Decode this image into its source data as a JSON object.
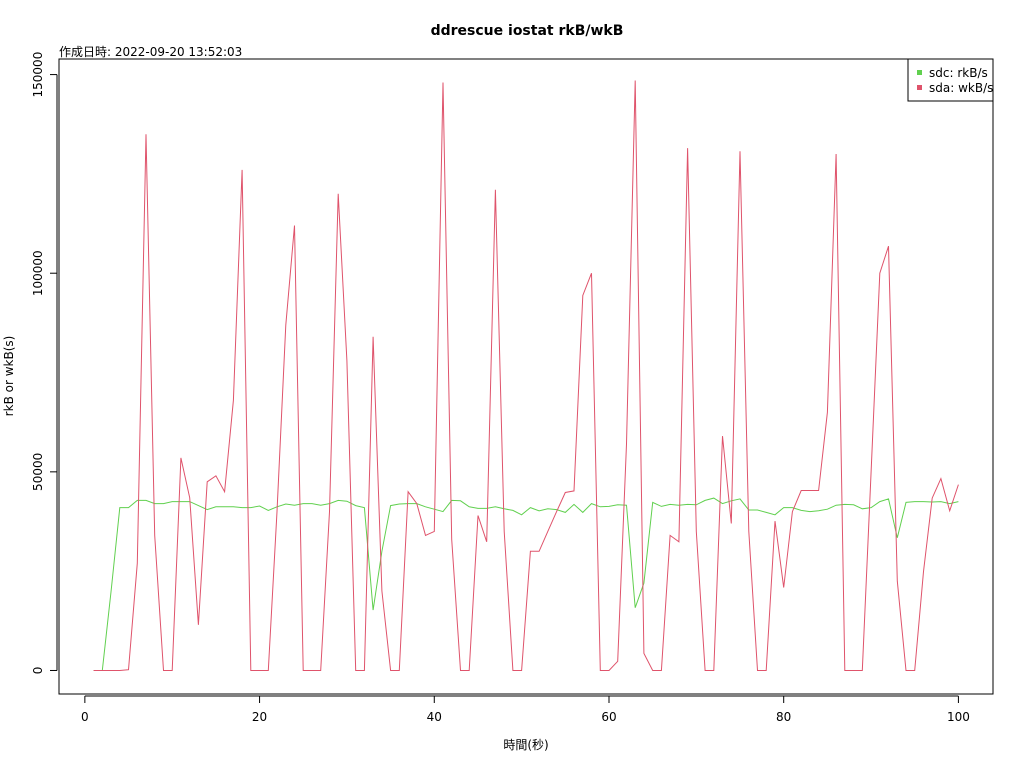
{
  "chart_data": {
    "type": "line",
    "title": "ddrescue iostat rkB/wkB",
    "subtitle": "作成日時: 2022-09-20 13:52:03",
    "xlabel": "時間(秒)",
    "ylabel": "rkB or wkB(s)",
    "xlim": [
      -2.96,
      103.96
    ],
    "ylim": [
      -5920,
      153920
    ],
    "xticks": [
      0,
      20,
      40,
      60,
      80,
      100
    ],
    "yticks": [
      0,
      50000,
      100000,
      150000
    ],
    "grid": false,
    "legend_position": "top-right",
    "x": [
      1,
      2,
      3,
      4,
      5,
      6,
      7,
      8,
      9,
      10,
      11,
      12,
      13,
      14,
      15,
      16,
      17,
      18,
      19,
      20,
      21,
      22,
      23,
      24,
      25,
      26,
      27,
      28,
      29,
      30,
      31,
      32,
      33,
      34,
      35,
      36,
      37,
      38,
      39,
      40,
      41,
      42,
      43,
      44,
      45,
      46,
      47,
      48,
      49,
      50,
      51,
      52,
      53,
      54,
      55,
      56,
      57,
      58,
      59,
      60,
      61,
      62,
      63,
      64,
      65,
      66,
      67,
      68,
      69,
      70,
      71,
      72,
      73,
      74,
      75,
      76,
      77,
      78,
      79,
      80,
      81,
      82,
      83,
      84,
      85,
      86,
      87,
      88,
      89,
      90,
      91,
      92,
      93,
      94,
      95,
      96,
      97,
      98,
      99,
      100
    ],
    "series": [
      {
        "name": "sdc: rkB/s",
        "color": "#61d04f",
        "values": [
          0,
          0,
          20000,
          41000,
          41000,
          42800,
          42800,
          42000,
          42000,
          42500,
          42500,
          42500,
          41500,
          40500,
          41200,
          41200,
          41200,
          41000,
          41000,
          41400,
          40300,
          41200,
          41900,
          41600,
          42000,
          42000,
          41600,
          42000,
          42800,
          42600,
          41500,
          41000,
          15200,
          30000,
          41500,
          41900,
          42000,
          42000,
          41200,
          40600,
          40000,
          42800,
          42700,
          41200,
          40800,
          40800,
          41200,
          40700,
          40300,
          39200,
          41000,
          40200,
          40700,
          40500,
          39800,
          41800,
          39800,
          42000,
          41200,
          41300,
          41700,
          41600,
          15800,
          22000,
          42300,
          41300,
          41800,
          41600,
          41800,
          41700,
          42800,
          43400,
          42000,
          42700,
          43200,
          40400,
          40400,
          39800,
          39200,
          41000,
          41000,
          40300,
          40000,
          40200,
          40600,
          41600,
          41800,
          41700,
          40700,
          41000,
          42500,
          43200,
          33400,
          42300,
          42500,
          42500,
          42400,
          42500,
          42000,
          42500
        ]
      },
      {
        "name": "sda: wkB/s",
        "color": "#df536b",
        "values": [
          0,
          0,
          0,
          0,
          200,
          27000,
          135000,
          34000,
          0,
          0,
          53500,
          43500,
          11500,
          47500,
          49000,
          45000,
          68000,
          126000,
          0,
          0,
          0,
          40000,
          87000,
          112000,
          0,
          0,
          0,
          40000,
          120000,
          78000,
          0,
          0,
          84000,
          20000,
          0,
          0,
          45000,
          42000,
          34000,
          35000,
          148000,
          33000,
          0,
          0,
          39000,
          32400,
          121000,
          35000,
          0,
          0,
          30000,
          30000,
          35000,
          40000,
          44800,
          45200,
          94400,
          100000,
          0,
          0,
          2300,
          57000,
          148500,
          4300,
          0,
          0,
          34000,
          32400,
          131500,
          35000,
          0,
          0,
          59000,
          37000,
          130700,
          35000,
          0,
          0,
          37600,
          20900,
          40000,
          45300,
          45300,
          45300,
          65000,
          130000,
          0,
          0,
          0,
          50000,
          100000,
          106800,
          22500,
          0,
          0,
          24900,
          43400,
          48300,
          40200,
          46800
        ]
      }
    ]
  }
}
